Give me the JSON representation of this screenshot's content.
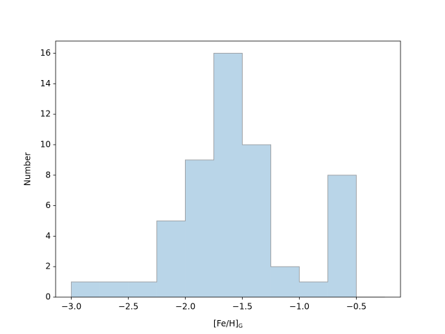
{
  "chart_data": {
    "type": "histogram",
    "xlabel": "[Fe/H]",
    "xlabel_subscript": "G",
    "ylabel": "Number",
    "bins": [
      -3.0,
      -2.75,
      -2.5,
      -2.25,
      -2.0,
      -1.75,
      -1.5,
      -1.25,
      -1.0,
      -0.75,
      -0.5,
      -0.25
    ],
    "counts": [
      1,
      1,
      1,
      5,
      9,
      16,
      10,
      2,
      1,
      8,
      0
    ],
    "color": "#b9d5e8",
    "edgecolor": "#a0a4a8",
    "xlim": [
      -3.1375,
      -0.1125
    ],
    "ylim": [
      0,
      16.8
    ],
    "xticks": [
      {
        "value": -3.0,
        "label": "−3.0"
      },
      {
        "value": -2.5,
        "label": "−2.5"
      },
      {
        "value": -2.0,
        "label": "−2.0"
      },
      {
        "value": -1.5,
        "label": "−1.5"
      },
      {
        "value": -1.0,
        "label": "−1.0"
      },
      {
        "value": -0.5,
        "label": "−0.5"
      }
    ],
    "yticks": [
      0,
      2,
      4,
      6,
      8,
      10,
      12,
      14,
      16
    ]
  }
}
